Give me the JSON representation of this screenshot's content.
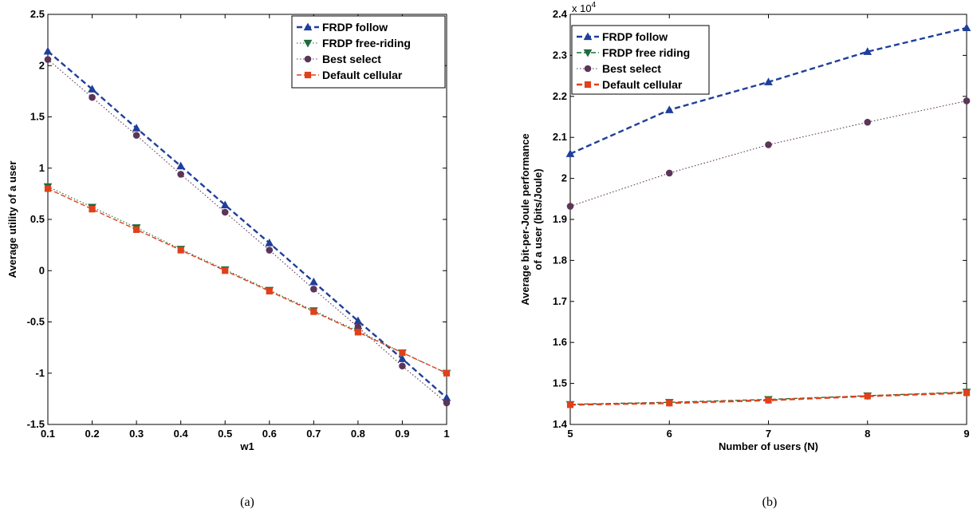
{
  "colors": {
    "blue": "#1f3f9a",
    "green": "#1e6b3c",
    "purple": "#5b3658",
    "red": "#e0401a"
  },
  "chart_data": [
    {
      "type": "line",
      "caption": "(a)",
      "xlabel": "w1",
      "ylabel": "Average utility of a user",
      "xlim": [
        0.1,
        1
      ],
      "ylim": [
        -1.5,
        2.5
      ],
      "xticks": [
        0.1,
        0.2,
        0.3,
        0.4,
        0.5,
        0.6,
        0.7,
        0.8,
        0.9,
        1
      ],
      "xtick_labels": [
        "0.1",
        "0.2",
        "0.3",
        "0.4",
        "0.5",
        "0.6",
        "0.7",
        "0.8",
        "0.9",
        "1"
      ],
      "yticks": [
        -1.5,
        -1,
        -0.5,
        0,
        0.5,
        1,
        1.5,
        2,
        2.5
      ],
      "ytick_labels": [
        "-1.5",
        "-1",
        "-0.5",
        "0",
        "0.5",
        "1",
        "1.5",
        "2",
        "2.5"
      ],
      "legend_position": "top-right",
      "x": [
        0.1,
        0.2,
        0.3,
        0.4,
        0.5,
        0.6,
        0.7,
        0.8,
        0.9,
        1
      ],
      "series": [
        {
          "name": "FRDP follow",
          "color": "#1f3f9a",
          "marker": "triangle-up",
          "line": "dash-bold",
          "values": [
            2.14,
            1.77,
            1.39,
            1.02,
            0.64,
            0.27,
            -0.11,
            -0.49,
            -0.86,
            -1.24
          ]
        },
        {
          "name": "FRDP free-riding",
          "color": "#1e6b3c",
          "marker": "triangle-down",
          "line": "dot",
          "values": [
            0.82,
            0.62,
            0.42,
            0.21,
            0.01,
            -0.19,
            -0.39,
            -0.59,
            -0.8,
            -1.0
          ]
        },
        {
          "name": "Best select",
          "color": "#5b3658",
          "marker": "circle",
          "line": "dot",
          "values": [
            2.06,
            1.69,
            1.32,
            0.94,
            0.57,
            0.2,
            -0.18,
            -0.55,
            -0.93,
            -1.29
          ]
        },
        {
          "name": "Default cellular",
          "color": "#e0401a",
          "marker": "square",
          "line": "dash",
          "values": [
            0.8,
            0.6,
            0.4,
            0.2,
            0.0,
            -0.2,
            -0.4,
            -0.6,
            -0.8,
            -1.0
          ]
        }
      ]
    },
    {
      "type": "line",
      "caption": "(b)",
      "xlabel": "Number of users (N)",
      "ylabel": [
        "Average bit-per-Joule performance",
        "of a user (bits/Joule)"
      ],
      "exponent_label": "x 10",
      "exponent_power": "4",
      "xlim": [
        5,
        9
      ],
      "ylim": [
        1.4,
        2.4
      ],
      "xticks": [
        5,
        6,
        7,
        8,
        9
      ],
      "xtick_labels": [
        "5",
        "6",
        "7",
        "8",
        "9"
      ],
      "yticks": [
        1.4,
        1.5,
        1.6,
        1.7,
        1.8,
        1.9,
        2.0,
        2.1,
        2.2,
        2.3,
        2.4
      ],
      "ytick_labels": [
        "1.4",
        "1.5",
        "1.6",
        "1.7",
        "1.8",
        "1.9",
        "2",
        "2.1",
        "2.2",
        "2.3",
        "2.4"
      ],
      "legend_position": "top-left",
      "x": [
        5,
        6,
        7,
        8,
        9
      ],
      "series": [
        {
          "name": "FRDP follow",
          "color": "#1f3f9a",
          "marker": "triangle-up",
          "line": "dash-bold",
          "values": [
            2.06,
            2.167,
            2.235,
            2.309,
            2.367
          ]
        },
        {
          "name": "FRDP free riding",
          "color": "#1e6b3c",
          "marker": "triangle-down",
          "line": "dash",
          "values": [
            1.449,
            1.454,
            1.461,
            1.47,
            1.479
          ]
        },
        {
          "name": "Best select",
          "color": "#5b3658",
          "marker": "circle",
          "line": "dot",
          "values": [
            1.932,
            2.013,
            2.082,
            2.137,
            2.189
          ]
        },
        {
          "name": "Default cellular",
          "color": "#e0401a",
          "marker": "square",
          "line": "dash-bold",
          "values": [
            1.448,
            1.452,
            1.459,
            1.469,
            1.477
          ]
        }
      ]
    }
  ]
}
